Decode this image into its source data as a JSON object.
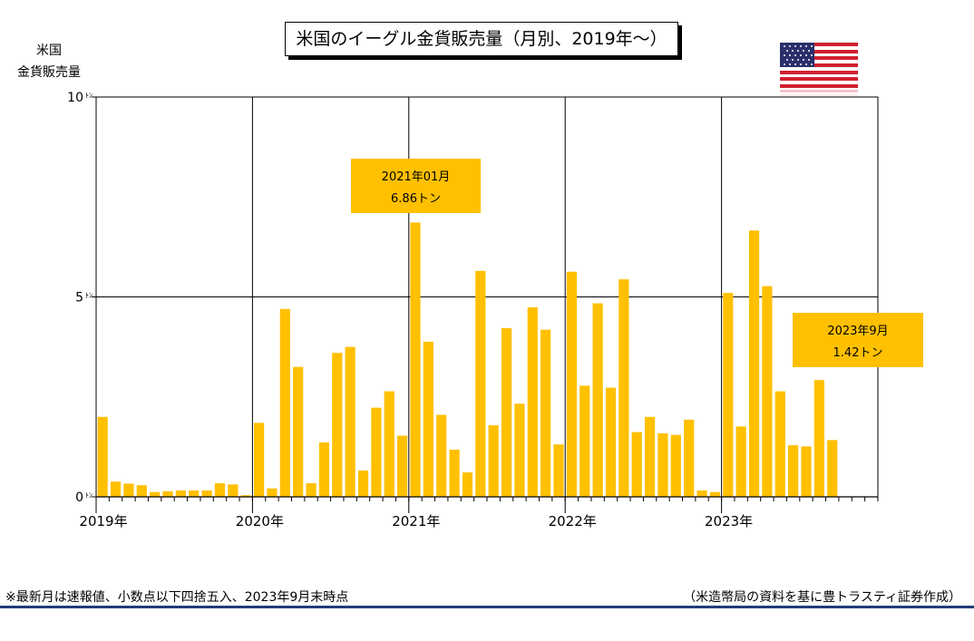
{
  "title": "米国のイーグル金貨販売量（月別、2019年～）",
  "ylabel_lines": [
    "米国",
    "金貨販売量"
  ],
  "footnote_left": "※最新月は速報値、小数点以下四捨五入、2023年9月末時点",
  "footnote_right": "（米造幣局の資料を基に豊トラスティ証券作成）",
  "flag_icon": "us-flag-icon",
  "colors": {
    "bar": "#FFC000",
    "callout": "#FFC000",
    "rule": "#1F3D7A"
  },
  "chart_data": {
    "type": "bar",
    "title": "米国のイーグル金貨販売量（月別、2019年～）",
    "ylabel": "米国 金貨販売量",
    "ylim": [
      0,
      10
    ],
    "yticks": [
      0,
      5,
      10
    ],
    "ytick_labels": [
      "0",
      "5",
      "10"
    ],
    "ytick_unit": "ﾄﾝ",
    "year_labels": [
      "2019年",
      "2020年",
      "2021年",
      "2022年",
      "2023年"
    ],
    "months_per_year": 12,
    "total_month_slots": 60,
    "grid": true,
    "categories": [
      "2019-01",
      "2019-02",
      "2019-03",
      "2019-04",
      "2019-05",
      "2019-06",
      "2019-07",
      "2019-08",
      "2019-09",
      "2019-10",
      "2019-11",
      "2019-12",
      "2020-01",
      "2020-02",
      "2020-03",
      "2020-04",
      "2020-05",
      "2020-06",
      "2020-07",
      "2020-08",
      "2020-09",
      "2020-10",
      "2020-11",
      "2020-12",
      "2021-01",
      "2021-02",
      "2021-03",
      "2021-04",
      "2021-05",
      "2021-06",
      "2021-07",
      "2021-08",
      "2021-09",
      "2021-10",
      "2021-11",
      "2021-12",
      "2022-01",
      "2022-02",
      "2022-03",
      "2022-04",
      "2022-05",
      "2022-06",
      "2022-07",
      "2022-08",
      "2022-09",
      "2022-10",
      "2022-11",
      "2022-12",
      "2023-01",
      "2023-02",
      "2023-03",
      "2023-04",
      "2023-05",
      "2023-06",
      "2023-07",
      "2023-08",
      "2023-09"
    ],
    "values": [
      2.0,
      0.38,
      0.33,
      0.29,
      0.12,
      0.14,
      0.16,
      0.16,
      0.16,
      0.34,
      0.31,
      0.04,
      1.85,
      0.21,
      4.7,
      3.25,
      0.34,
      1.36,
      3.6,
      3.75,
      0.66,
      2.23,
      2.64,
      1.53,
      6.86,
      3.88,
      2.05,
      1.18,
      0.61,
      5.65,
      1.79,
      4.22,
      2.33,
      4.74,
      4.18,
      1.31,
      5.63,
      2.78,
      4.84,
      2.73,
      5.44,
      1.62,
      2.0,
      1.59,
      1.55,
      1.93,
      0.16,
      0.12,
      5.1,
      1.76,
      6.66,
      5.27,
      2.64,
      1.29,
      1.26,
      2.92,
      1.42
    ],
    "annotations": [
      {
        "lines": [
          "2021年01月",
          "6.86トン"
        ],
        "category": "2021-01"
      },
      {
        "lines": [
          "2023年9月",
          "1.42トン"
        ],
        "category": "2023-09"
      }
    ]
  }
}
